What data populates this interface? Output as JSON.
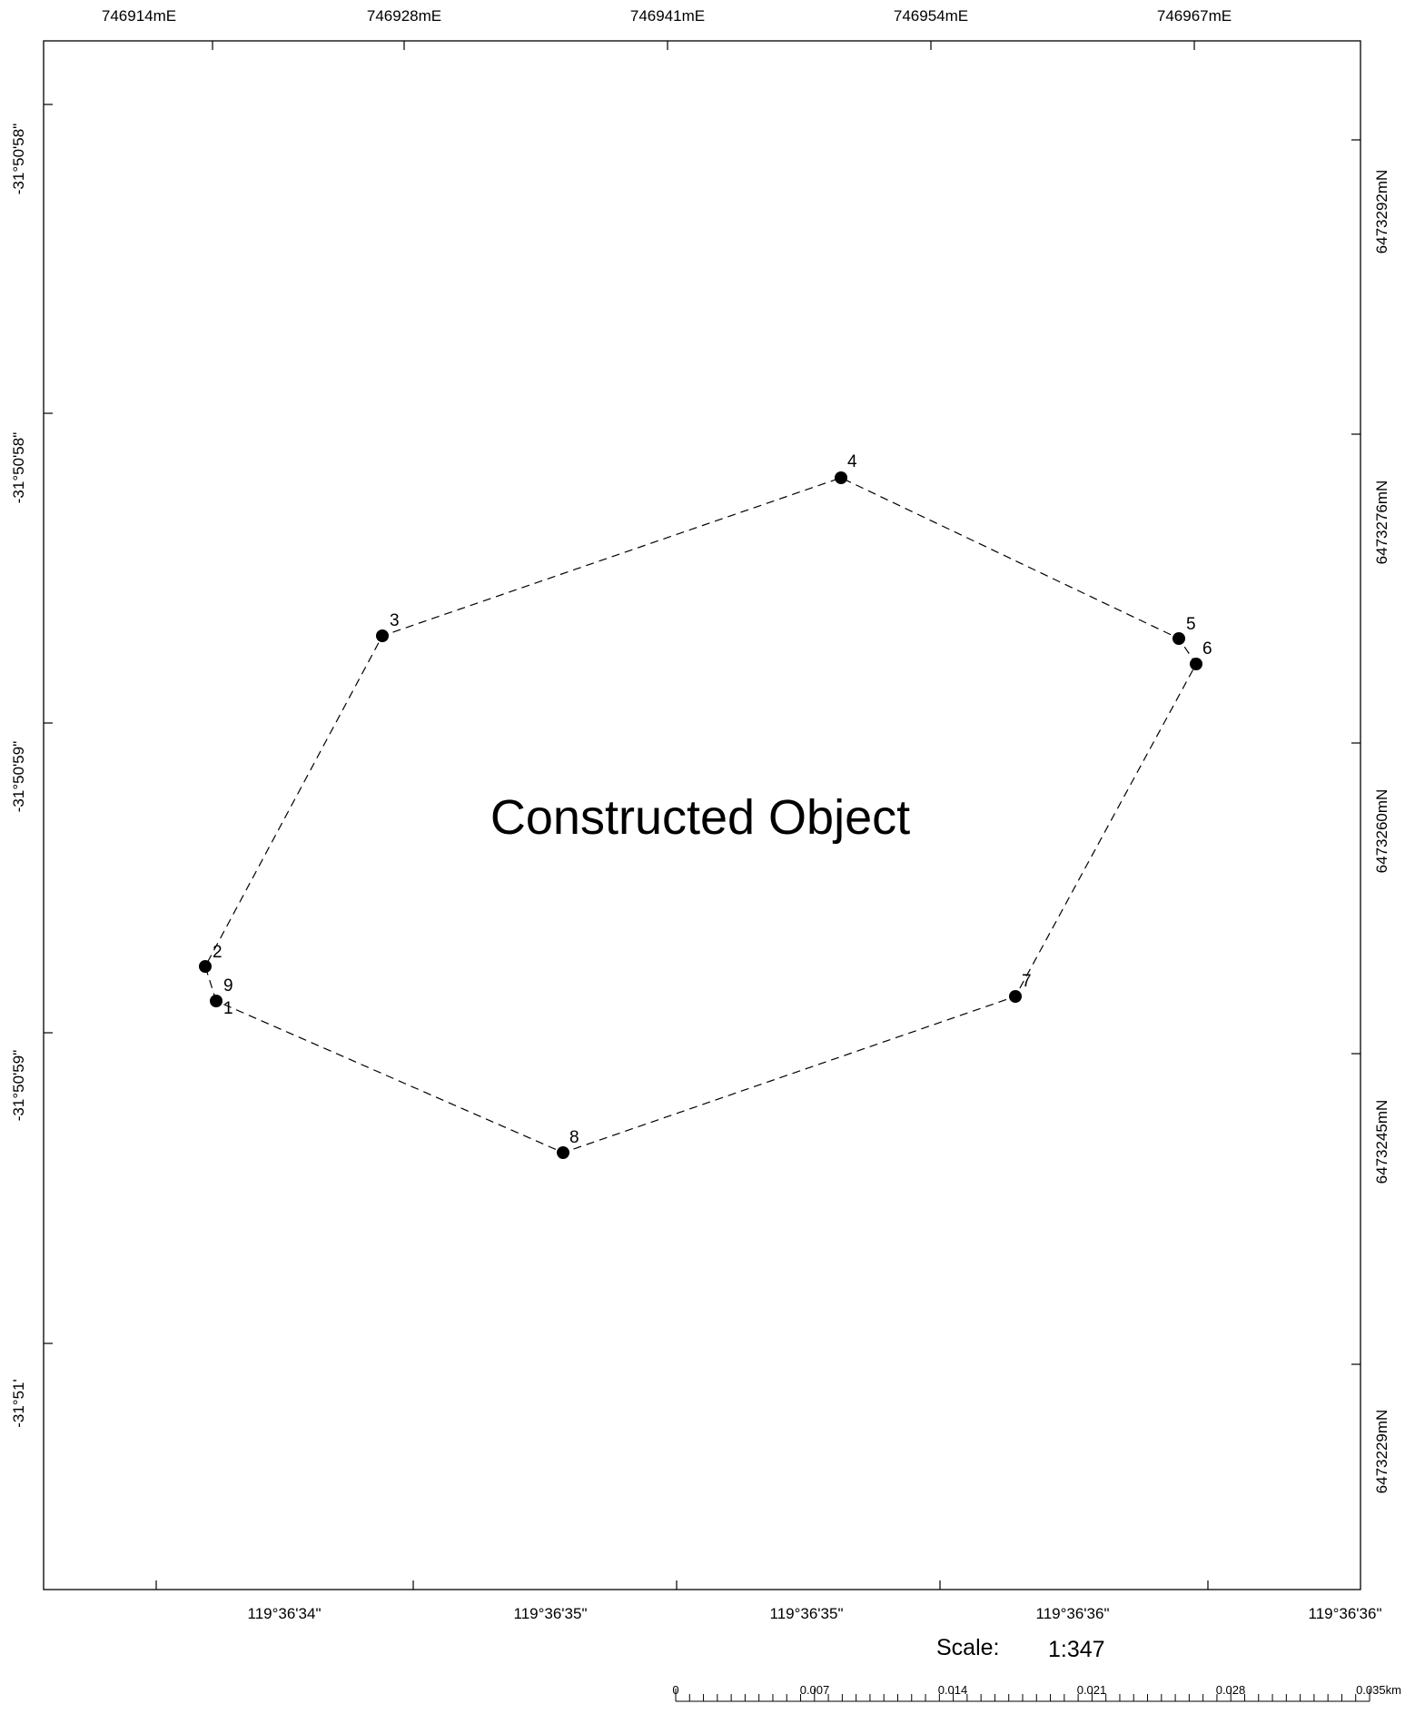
{
  "title": "Constructed Object",
  "top_labels": [
    "746914mE",
    "746928mE",
    "746941mE",
    "746954mE",
    "746967mE"
  ],
  "right_labels": [
    "6473292mN",
    "6473276mN",
    "6473260mN",
    "6473245mN",
    "6473229mN"
  ],
  "left_labels": [
    "-31°50'58\"",
    "-31°50'58\"",
    "-31°50'59\"",
    "-31°50'59\"",
    "-31°51'"
  ],
  "bottom_labels": [
    "119°36'34\"",
    "119°36'35\"",
    "119°36'35\"",
    "119°36'36\"",
    "119°36'36\""
  ],
  "scale": {
    "label": "Scale:",
    "value": "1:347"
  },
  "scalebar": {
    "labels": [
      "0",
      "0.007",
      "0.014",
      "0.021",
      "0.028",
      "0.035km"
    ]
  },
  "vertices": [
    {
      "id": "1",
      "label": "1"
    },
    {
      "id": "2",
      "label": "2"
    },
    {
      "id": "3",
      "label": "3"
    },
    {
      "id": "4",
      "label": "4"
    },
    {
      "id": "5",
      "label": "5"
    },
    {
      "id": "6",
      "label": "6"
    },
    {
      "id": "7",
      "label": "7"
    },
    {
      "id": "8",
      "label": "8"
    },
    {
      "id": "9",
      "label": "9"
    }
  ],
  "outline": {
    "style": "dashed",
    "color": "#000000"
  }
}
